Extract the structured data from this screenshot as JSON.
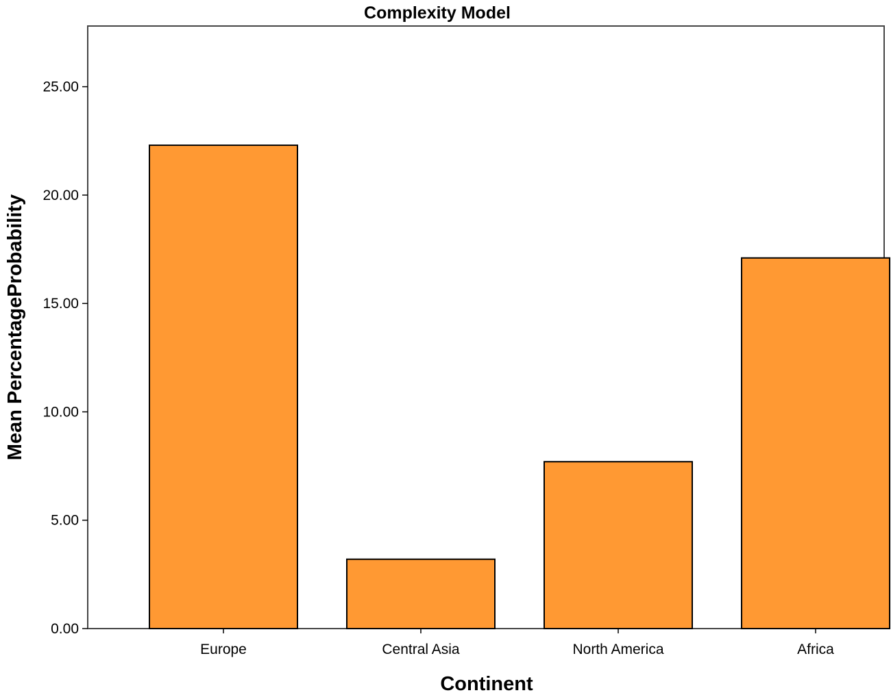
{
  "chart_data": {
    "type": "bar",
    "title": "Complexity Model",
    "xlabel": "Continent",
    "ylabel": "Mean PercentageProbability",
    "categories": [
      "Europe",
      "Central Asia",
      "North America",
      "Africa"
    ],
    "values": [
      22.3,
      3.2,
      7.7,
      17.1
    ],
    "yticks": [
      "0.00",
      "5.00",
      "10.00",
      "15.00",
      "20.00",
      "25.00"
    ],
    "ylim": [
      0,
      27.8
    ],
    "grid": false,
    "bar_color": "#FF9933",
    "bar_edge_color": "#000000"
  }
}
